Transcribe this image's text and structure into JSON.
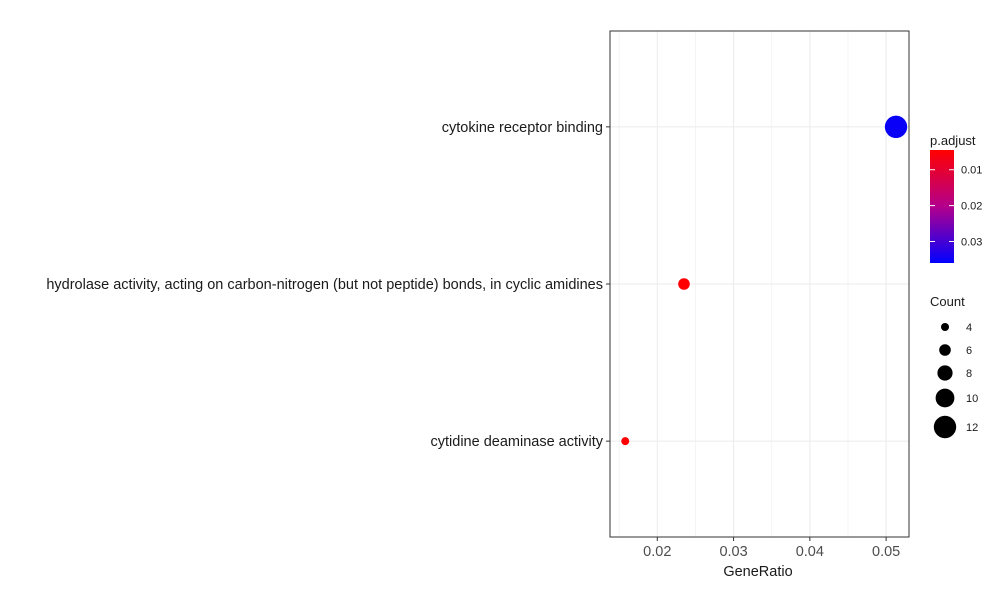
{
  "chart_data": {
    "type": "scatter",
    "xlabel": "GeneRatio",
    "ylabel": "",
    "xlim": [
      0.0138,
      0.053
    ],
    "x_ticks": [
      0.02,
      0.03,
      0.04,
      0.05
    ],
    "x_tick_labels": [
      "0.02",
      "0.03",
      "0.04",
      "0.05"
    ],
    "grid": true,
    "legend_placement": "right",
    "categories": [
      "cytokine receptor binding",
      "hydrolase activity, acting on carbon-nitrogen (but not peptide) bonds, in cyclic amidines",
      "cytidine deaminase activity"
    ],
    "points": [
      {
        "term": "cytokine receptor binding",
        "gene_ratio": 0.0513,
        "count": 12,
        "p_adjust": 0.035
      },
      {
        "term": "hydrolase activity, acting on carbon-nitrogen (but not peptide) bonds, in cyclic amidines",
        "gene_ratio": 0.0235,
        "count": 6,
        "p_adjust": 0.0045
      },
      {
        "term": "cytidine deaminase activity",
        "gene_ratio": 0.0158,
        "count": 4,
        "p_adjust": 0.0045
      }
    ],
    "color_legend": {
      "title": "p.adjust",
      "low_color": "#FF0000",
      "high_color": "#0000FF",
      "range": [
        0.0045,
        0.036
      ],
      "ticks": [
        0.01,
        0.02,
        0.03
      ],
      "tick_labels": [
        "0.01",
        "0.02",
        "0.03"
      ]
    },
    "size_legend": {
      "title": "Count",
      "values": [
        4,
        6,
        8,
        10,
        12
      ],
      "labels": [
        "4",
        "6",
        "8",
        "10",
        "12"
      ],
      "color": "#000000"
    }
  }
}
